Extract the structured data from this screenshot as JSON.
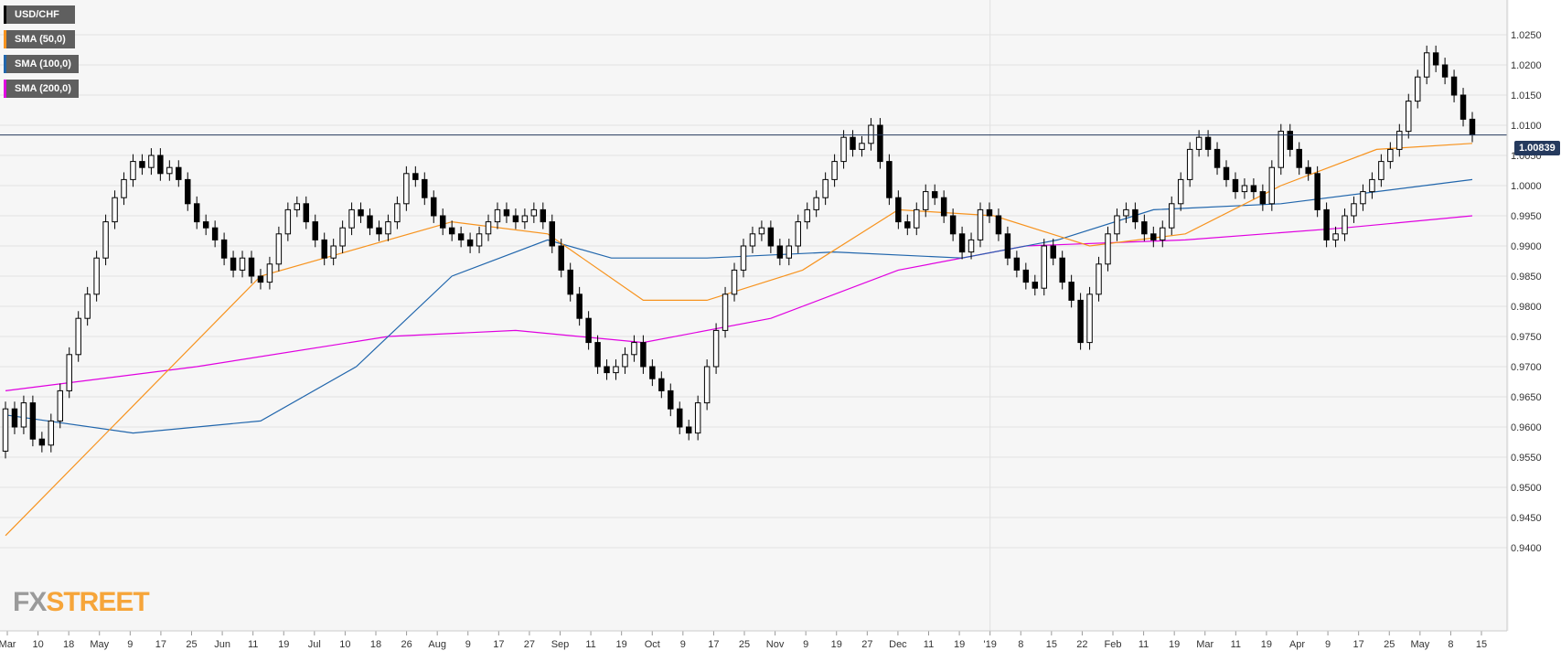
{
  "legend": [
    {
      "label": "USD/CHF",
      "color": "#000000"
    },
    {
      "label": "SMA (50,0)",
      "color": "#f7931e"
    },
    {
      "label": "SMA (100,0)",
      "color": "#2166ac"
    },
    {
      "label": "SMA (200,0)",
      "color": "#e000e0"
    }
  ],
  "logo": {
    "fx": "FX",
    "street": "STREET"
  },
  "current_price": "1.00839",
  "chart_data": {
    "type": "candlestick",
    "title": "",
    "symbol": "USD/CHF",
    "y_ticks": [
      "1.0250",
      "1.0200",
      "1.0150",
      "1.0100",
      "1.0050",
      "1.0000",
      "0.9950",
      "0.9900",
      "0.9850",
      "0.9800",
      "0.9750",
      "0.9700",
      "0.9650",
      "0.9600",
      "0.9550",
      "0.9500",
      "0.9450",
      "0.9400"
    ],
    "ylim": [
      0.9365,
      1.029
    ],
    "x_ticks": [
      "Mar",
      "10",
      "18",
      "May",
      "9",
      "17",
      "25",
      "Jun",
      "11",
      "19",
      "Jul",
      "10",
      "18",
      "26",
      "Aug",
      "9",
      "17",
      "27",
      "Sep",
      "11",
      "19",
      "Oct",
      "9",
      "17",
      "25",
      "Nov",
      "9",
      "19",
      "27",
      "Dec",
      "11",
      "19",
      "'19",
      "8",
      "15",
      "22",
      "Feb",
      "11",
      "19",
      "Mar",
      "11",
      "19",
      "Apr",
      "9",
      "17",
      "25",
      "May",
      "8",
      "15"
    ],
    "grid": true,
    "horizontal_line": 1.00839,
    "candles": [
      [
        0.956,
        0.963
      ],
      [
        0.963,
        0.96
      ],
      [
        0.96,
        0.964
      ],
      [
        0.964,
        0.958
      ],
      [
        0.958,
        0.957
      ],
      [
        0.957,
        0.961
      ],
      [
        0.961,
        0.966
      ],
      [
        0.966,
        0.972
      ],
      [
        0.972,
        0.978
      ],
      [
        0.978,
        0.982
      ],
      [
        0.982,
        0.988
      ],
      [
        0.988,
        0.994
      ],
      [
        0.994,
        0.998
      ],
      [
        0.998,
        1.001
      ],
      [
        1.001,
        1.004
      ],
      [
        1.004,
        1.003
      ],
      [
        1.003,
        1.005
      ],
      [
        1.005,
        1.002
      ],
      [
        1.002,
        1.003
      ],
      [
        1.003,
        1.001
      ],
      [
        1.001,
        0.997
      ],
      [
        0.997,
        0.994
      ],
      [
        0.994,
        0.993
      ],
      [
        0.993,
        0.991
      ],
      [
        0.991,
        0.988
      ],
      [
        0.988,
        0.986
      ],
      [
        0.986,
        0.988
      ],
      [
        0.988,
        0.985
      ],
      [
        0.985,
        0.984
      ],
      [
        0.984,
        0.987
      ],
      [
        0.987,
        0.992
      ],
      [
        0.992,
        0.996
      ],
      [
        0.996,
        0.997
      ],
      [
        0.997,
        0.994
      ],
      [
        0.994,
        0.991
      ],
      [
        0.991,
        0.988
      ],
      [
        0.988,
        0.99
      ],
      [
        0.99,
        0.993
      ],
      [
        0.993,
        0.996
      ],
      [
        0.996,
        0.995
      ],
      [
        0.995,
        0.993
      ],
      [
        0.993,
        0.992
      ],
      [
        0.992,
        0.994
      ],
      [
        0.994,
        0.997
      ],
      [
        0.997,
        1.002
      ],
      [
        1.002,
        1.001
      ],
      [
        1.001,
        0.998
      ],
      [
        0.998,
        0.995
      ],
      [
        0.995,
        0.993
      ],
      [
        0.993,
        0.992
      ],
      [
        0.992,
        0.991
      ],
      [
        0.991,
        0.99
      ],
      [
        0.99,
        0.992
      ],
      [
        0.992,
        0.994
      ],
      [
        0.994,
        0.996
      ],
      [
        0.996,
        0.995
      ],
      [
        0.995,
        0.994
      ],
      [
        0.994,
        0.995
      ],
      [
        0.995,
        0.996
      ],
      [
        0.996,
        0.994
      ],
      [
        0.994,
        0.99
      ],
      [
        0.99,
        0.986
      ],
      [
        0.986,
        0.982
      ],
      [
        0.982,
        0.978
      ],
      [
        0.978,
        0.974
      ],
      [
        0.974,
        0.97
      ],
      [
        0.97,
        0.969
      ],
      [
        0.969,
        0.97
      ],
      [
        0.97,
        0.972
      ],
      [
        0.972,
        0.974
      ],
      [
        0.974,
        0.97
      ],
      [
        0.97,
        0.968
      ],
      [
        0.968,
        0.966
      ],
      [
        0.966,
        0.963
      ],
      [
        0.963,
        0.96
      ],
      [
        0.96,
        0.959
      ],
      [
        0.959,
        0.964
      ],
      [
        0.964,
        0.97
      ],
      [
        0.97,
        0.976
      ],
      [
        0.976,
        0.982
      ],
      [
        0.982,
        0.986
      ],
      [
        0.986,
        0.99
      ],
      [
        0.99,
        0.992
      ],
      [
        0.992,
        0.993
      ],
      [
        0.993,
        0.99
      ],
      [
        0.99,
        0.988
      ],
      [
        0.988,
        0.99
      ],
      [
        0.99,
        0.994
      ],
      [
        0.994,
        0.996
      ],
      [
        0.996,
        0.998
      ],
      [
        0.998,
        1.001
      ],
      [
        1.001,
        1.004
      ],
      [
        1.004,
        1.008
      ],
      [
        1.008,
        1.006
      ],
      [
        1.006,
        1.007
      ],
      [
        1.007,
        1.01
      ],
      [
        1.01,
        1.004
      ],
      [
        1.004,
        0.998
      ],
      [
        0.998,
        0.994
      ],
      [
        0.994,
        0.993
      ],
      [
        0.993,
        0.996
      ],
      [
        0.996,
        0.999
      ],
      [
        0.999,
        0.998
      ],
      [
        0.998,
        0.995
      ],
      [
        0.995,
        0.992
      ],
      [
        0.992,
        0.989
      ],
      [
        0.989,
        0.991
      ],
      [
        0.991,
        0.996
      ],
      [
        0.996,
        0.995
      ],
      [
        0.995,
        0.992
      ],
      [
        0.992,
        0.988
      ],
      [
        0.988,
        0.986
      ],
      [
        0.986,
        0.984
      ],
      [
        0.984,
        0.983
      ],
      [
        0.983,
        0.99
      ],
      [
        0.99,
        0.988
      ],
      [
        0.988,
        0.984
      ],
      [
        0.984,
        0.981
      ],
      [
        0.981,
        0.974
      ],
      [
        0.974,
        0.982
      ],
      [
        0.982,
        0.987
      ],
      [
        0.987,
        0.992
      ],
      [
        0.992,
        0.995
      ],
      [
        0.995,
        0.996
      ],
      [
        0.996,
        0.994
      ],
      [
        0.994,
        0.992
      ],
      [
        0.992,
        0.991
      ],
      [
        0.991,
        0.993
      ],
      [
        0.993,
        0.997
      ],
      [
        0.997,
        1.001
      ],
      [
        1.001,
        1.006
      ],
      [
        1.006,
        1.008
      ],
      [
        1.008,
        1.006
      ],
      [
        1.006,
        1.003
      ],
      [
        1.003,
        1.001
      ],
      [
        1.001,
        0.999
      ],
      [
        0.999,
        1.0
      ],
      [
        1.0,
        0.999
      ],
      [
        0.999,
        0.997
      ],
      [
        0.997,
        1.003
      ],
      [
        1.003,
        1.009
      ],
      [
        1.009,
        1.006
      ],
      [
        1.006,
        1.003
      ],
      [
        1.003,
        1.002
      ],
      [
        1.002,
        0.996
      ],
      [
        0.996,
        0.991
      ],
      [
        0.991,
        0.992
      ],
      [
        0.992,
        0.995
      ],
      [
        0.995,
        0.997
      ],
      [
        0.997,
        0.999
      ],
      [
        0.999,
        1.001
      ],
      [
        1.001,
        1.004
      ],
      [
        1.004,
        1.006
      ],
      [
        1.006,
        1.009
      ],
      [
        1.009,
        1.014
      ],
      [
        1.014,
        1.018
      ],
      [
        1.018,
        1.022
      ],
      [
        1.022,
        1.02
      ],
      [
        1.02,
        1.018
      ],
      [
        1.018,
        1.015
      ],
      [
        1.015,
        1.011
      ],
      [
        1.011,
        1.0084
      ]
    ],
    "sma50": [
      [
        0,
        0.942
      ],
      [
        40,
        0.985
      ],
      [
        70,
        0.994
      ],
      [
        85,
        0.992
      ],
      [
        100,
        0.981
      ],
      [
        110,
        0.981
      ],
      [
        125,
        0.986
      ],
      [
        140,
        0.996
      ],
      [
        155,
        0.995
      ],
      [
        170,
        0.99
      ],
      [
        185,
        0.992
      ],
      [
        200,
        1.0
      ],
      [
        215,
        1.006
      ],
      [
        230,
        1.007
      ]
    ],
    "sma100": [
      [
        0,
        0.962
      ],
      [
        20,
        0.959
      ],
      [
        40,
        0.961
      ],
      [
        55,
        0.97
      ],
      [
        70,
        0.985
      ],
      [
        85,
        0.991
      ],
      [
        95,
        0.988
      ],
      [
        110,
        0.988
      ],
      [
        130,
        0.989
      ],
      [
        150,
        0.988
      ],
      [
        165,
        0.991
      ],
      [
        180,
        0.996
      ],
      [
        200,
        0.997
      ],
      [
        230,
        1.001
      ]
    ],
    "sma200": [
      [
        0,
        0.966
      ],
      [
        30,
        0.97
      ],
      [
        60,
        0.975
      ],
      [
        80,
        0.976
      ],
      [
        100,
        0.974
      ],
      [
        120,
        0.978
      ],
      [
        140,
        0.986
      ],
      [
        160,
        0.99
      ],
      [
        185,
        0.991
      ],
      [
        210,
        0.993
      ],
      [
        230,
        0.995
      ]
    ]
  }
}
